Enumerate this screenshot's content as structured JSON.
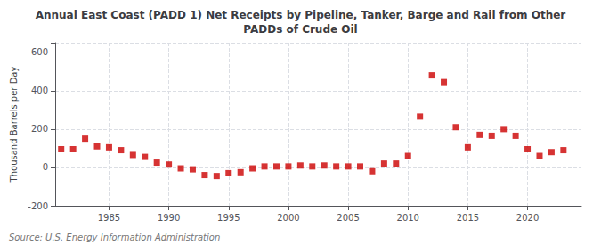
{
  "chart_data": {
    "type": "scatter",
    "title": "Annual East Coast (PADD 1) Net Receipts by Pipeline, Tanker, Barge and Rail from Other\nPADDs of Crude Oil",
    "ylabel": "Thousand Barrels per Day",
    "annotations": [
      "Source: U.S. Energy Information Administration"
    ],
    "x": [
      1981,
      1982,
      1983,
      1984,
      1985,
      1986,
      1987,
      1988,
      1989,
      1990,
      1991,
      1992,
      1993,
      1994,
      1995,
      1996,
      1997,
      1998,
      1999,
      2000,
      2001,
      2002,
      2003,
      2004,
      2005,
      2006,
      2007,
      2008,
      2009,
      2010,
      2011,
      2012,
      2013,
      2014,
      2015,
      2016,
      2017,
      2018,
      2019,
      2020,
      2021,
      2022,
      2023
    ],
    "values": [
      95,
      95,
      150,
      110,
      105,
      90,
      65,
      55,
      25,
      15,
      -5,
      -10,
      -40,
      -45,
      -30,
      -25,
      -5,
      5,
      5,
      5,
      10,
      5,
      10,
      5,
      5,
      5,
      -20,
      20,
      20,
      60,
      265,
      480,
      445,
      210,
      105,
      170,
      165,
      200,
      165,
      95,
      60,
      80,
      90
    ],
    "color": "#cc0000",
    "marker": "square",
    "xlim": [
      1980.5,
      2024.5
    ],
    "xticks": [
      1985,
      1990,
      1995,
      2000,
      2005,
      2010,
      2015,
      2020
    ],
    "ylim": [
      -200,
      650
    ],
    "yticks": [
      -200,
      0,
      200,
      400,
      600
    ],
    "grid": true
  }
}
